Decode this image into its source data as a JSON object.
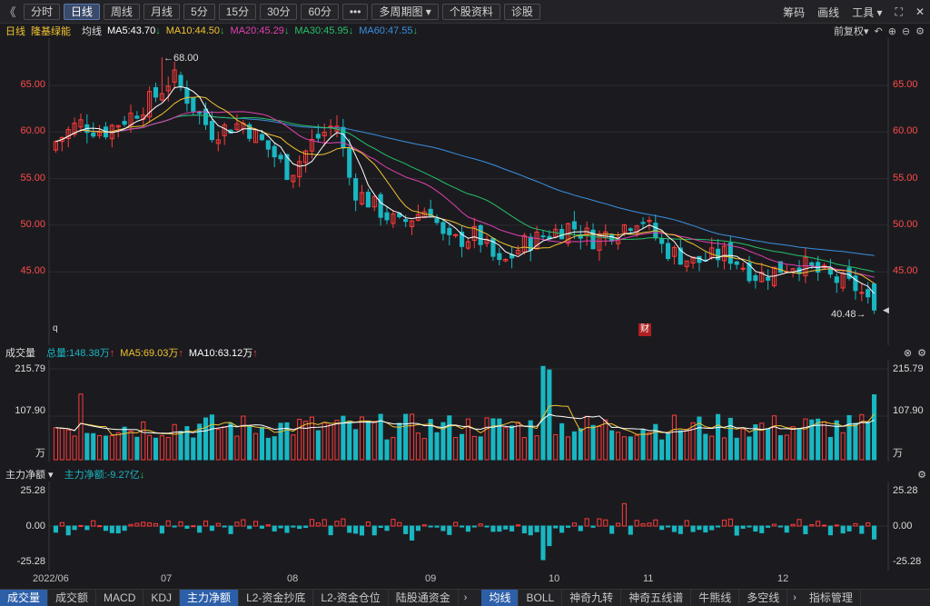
{
  "toolbar": {
    "back": "《",
    "periods": [
      "分时",
      "日线",
      "周线",
      "月线",
      "5分",
      "15分",
      "30分",
      "60分"
    ],
    "active_period": "日线",
    "more": "•••",
    "multi": "多周期图",
    "stock_info": "个股资料",
    "diagnose": "诊股",
    "right": [
      "筹码",
      "画线",
      "工具"
    ]
  },
  "ma_bar": {
    "period": "日线",
    "name": "隆基绿能",
    "label": "均线",
    "ma5": "MA5:43.70",
    "ma10": "MA10:44.50",
    "ma20": "MA20:45.29",
    "ma30": "MA30:45.95",
    "ma60": "MA60:47.55",
    "fq": "前复权"
  },
  "colors": {
    "up": "#ff3b3b",
    "down": "#19b7c2",
    "ma5": "#ffffff",
    "ma10": "#f2c230",
    "ma20": "#e040b0",
    "ma30": "#27c06a",
    "ma60": "#3a8fe0"
  },
  "price_axis": {
    "ticks": [
      "65.00",
      "60.00",
      "55.00",
      "50.00",
      "45.00"
    ],
    "high_label": "68.00",
    "low_label": "40.48",
    "marker_cai": "财"
  },
  "volume_head": {
    "title": "成交量",
    "total": "总量:148.38万",
    "ma5": "MA5:69.03万",
    "ma10": "MA10:63.12万",
    "ticks": [
      "215.79",
      "107.90",
      "万"
    ]
  },
  "flow_head": {
    "title": "主力净额",
    "value": "主力净额:-9.27亿",
    "ticks": [
      "25.28",
      "0.00",
      "-25.28"
    ]
  },
  "x_labels": [
    "2022/06",
    "07",
    "08",
    "09",
    "10",
    "11",
    "12"
  ],
  "tabs": [
    "成交量",
    "成交额",
    "MACD",
    "KDJ",
    "主力净额",
    "L2-资金抄底",
    "L2-资金仓位",
    "陆股通资金",
    "均线",
    "BOLL",
    "神奇九转",
    "神奇五线谱",
    "牛熊线",
    "多空线",
    "指标管理"
  ],
  "active_tabs": [
    "成交量",
    "主力净额",
    "均线"
  ],
  "chart_data": {
    "type": "candlestick",
    "title": "隆基绿能 日线",
    "price_range": [
      40,
      68
    ],
    "candles": [],
    "volume_range": [
      0,
      215.79
    ],
    "flow_range": [
      -25.28,
      25.28
    ]
  }
}
